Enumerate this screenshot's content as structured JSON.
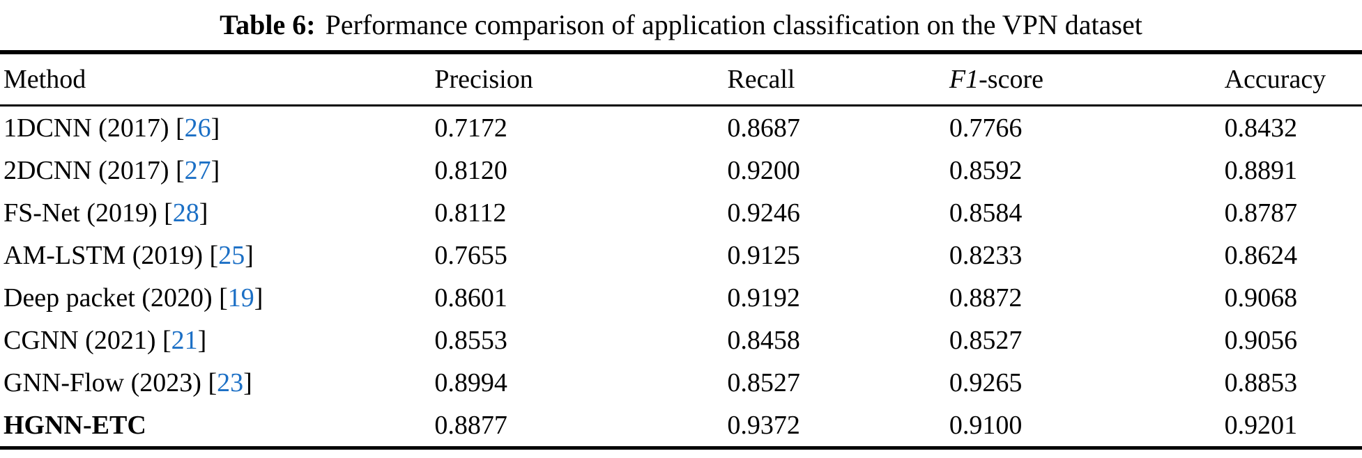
{
  "caption": {
    "label": "Table 6:",
    "text": "Performance comparison of application classification on the VPN dataset"
  },
  "colors": {
    "text": "#000000",
    "citation": "#1b6fc5",
    "background": "#ffffff"
  },
  "table": {
    "columns": [
      {
        "key": "method",
        "label": "Method",
        "width": "31.9%"
      },
      {
        "key": "precision",
        "label": "Precision",
        "width": "21.5%"
      },
      {
        "key": "recall",
        "label": "Recall",
        "width": "16.3%"
      },
      {
        "key": "f1",
        "label": "F1-score",
        "width": "20.2%",
        "italic_part": "F1",
        "rest_part": "-score"
      },
      {
        "key": "accuracy",
        "label": "Accuracy",
        "width": "10.1%"
      }
    ],
    "metric_keys": [
      "precision",
      "recall",
      "f1",
      "accuracy"
    ],
    "rows": [
      {
        "method": "1DCNN (2017)",
        "cite": "26",
        "method_bold": false,
        "precision": "0.7172",
        "recall": "0.8687",
        "f1": "0.7766",
        "accuracy": "0.8432",
        "bold": []
      },
      {
        "method": "2DCNN (2017)",
        "cite": "27",
        "method_bold": false,
        "precision": "0.8120",
        "recall": "0.9200",
        "f1": "0.8592",
        "accuracy": "0.8891",
        "bold": []
      },
      {
        "method": "FS-Net (2019)",
        "cite": "28",
        "method_bold": false,
        "precision": "0.8112",
        "recall": "0.9246",
        "f1": "0.8584",
        "accuracy": "0.8787",
        "bold": []
      },
      {
        "method": "AM-LSTM (2019)",
        "cite": "25",
        "method_bold": false,
        "precision": "0.7655",
        "recall": "0.9125",
        "f1": "0.8233",
        "accuracy": "0.8624",
        "bold": []
      },
      {
        "method": "Deep packet (2020)",
        "cite": "19",
        "method_bold": false,
        "precision": "0.8601",
        "recall": "0.9192",
        "f1": "0.8872",
        "accuracy": "0.9068",
        "bold": []
      },
      {
        "method": "CGNN (2021)",
        "cite": "21",
        "method_bold": false,
        "precision": "0.8553",
        "recall": "0.8458",
        "f1": "0.8527",
        "accuracy": "0.9056",
        "bold": []
      },
      {
        "method": "GNN-Flow (2023)",
        "cite": "23",
        "method_bold": false,
        "precision": "0.8994",
        "recall": "0.8527",
        "f1": "0.9265",
        "accuracy": "0.8853",
        "bold": [
          "precision",
          "f1"
        ]
      },
      {
        "method": "HGNN-ETC",
        "cite": null,
        "method_bold": true,
        "precision": "0.8877",
        "recall": "0.9372",
        "f1": "0.9100",
        "accuracy": "0.9201",
        "bold": [
          "recall",
          "accuracy"
        ]
      }
    ]
  }
}
